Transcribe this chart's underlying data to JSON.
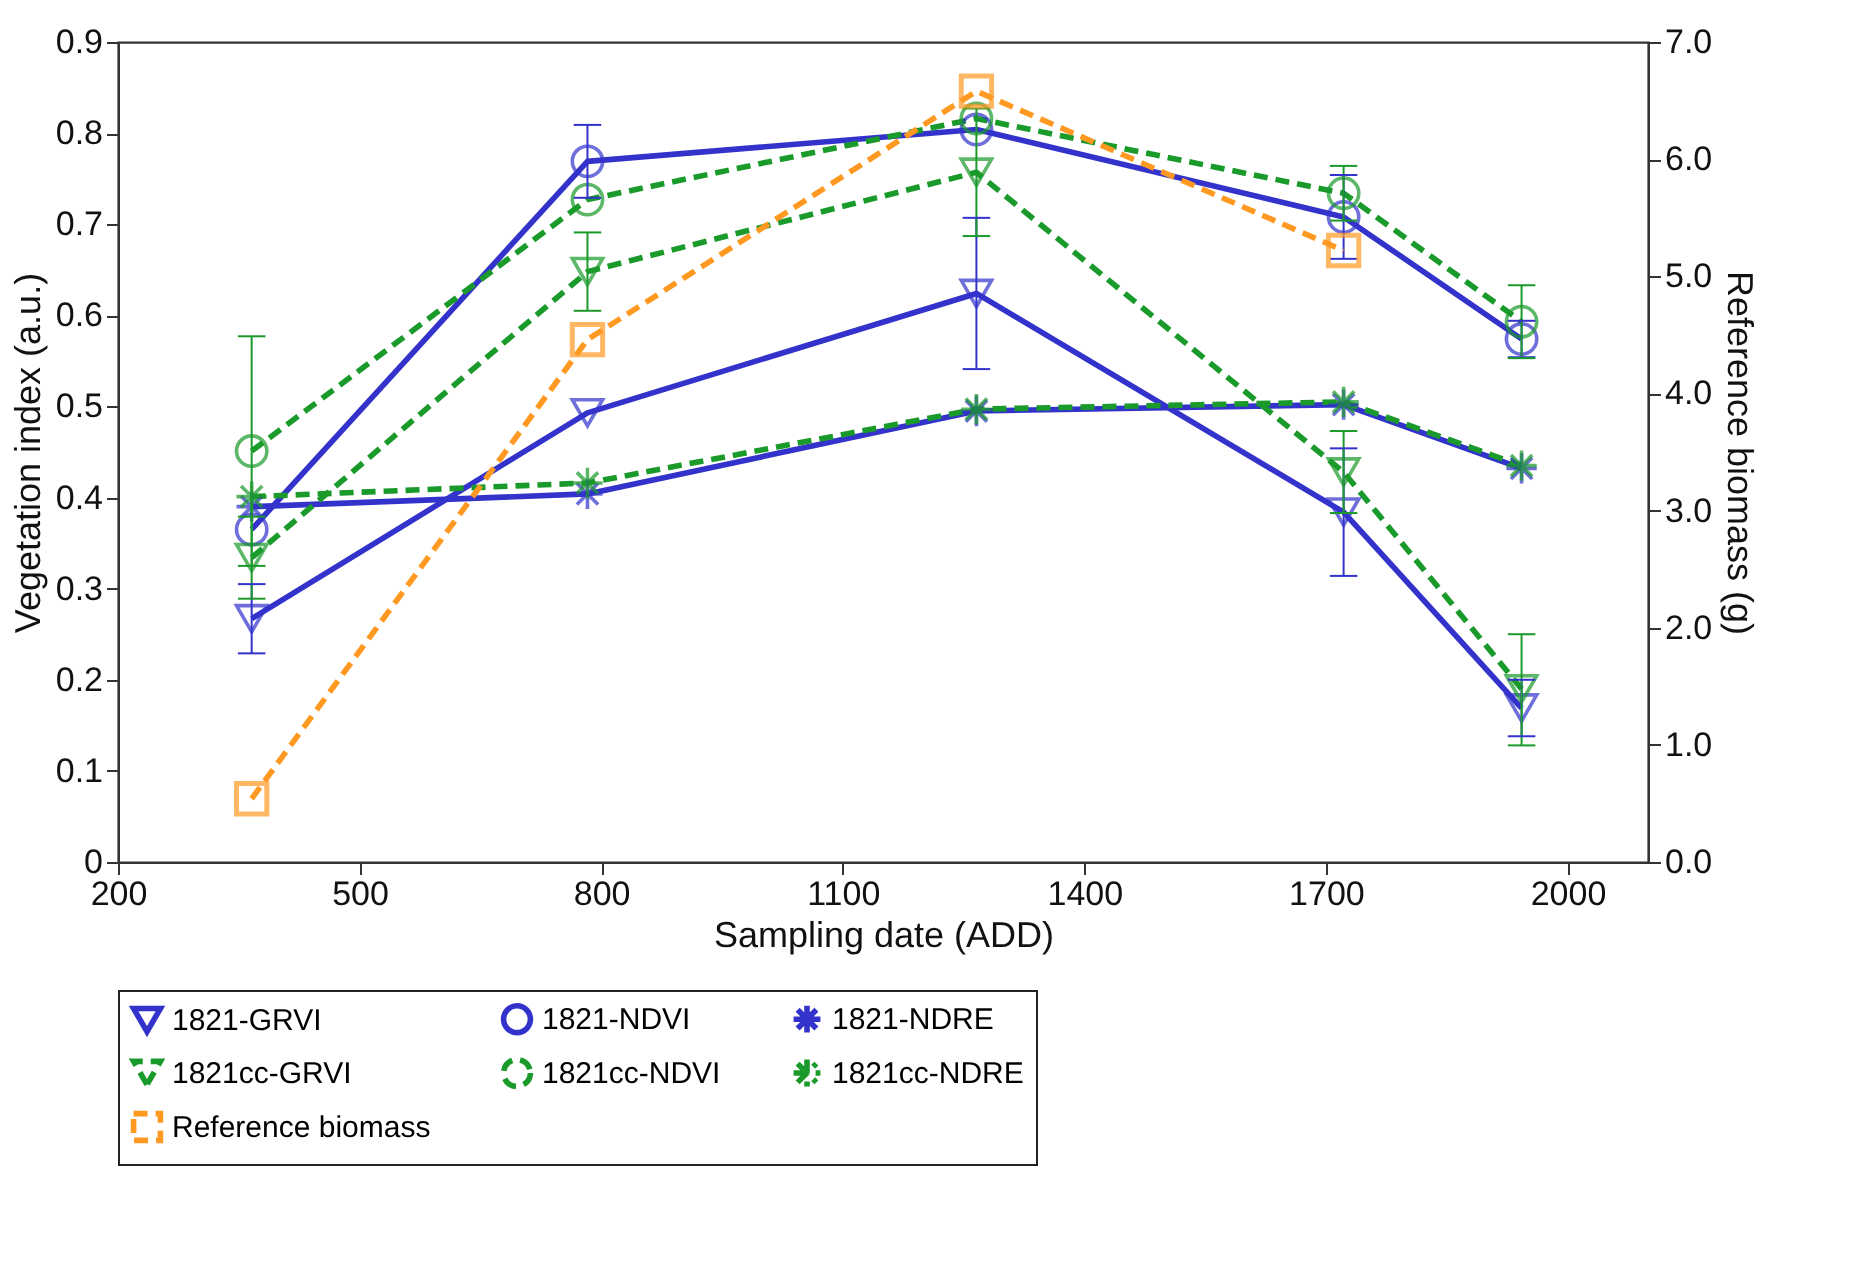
{
  "chart_data": {
    "type": "line",
    "xlabel": "Sampling date (ADD)",
    "ylabel": "Vegetation index (a.u.)",
    "y2label": "Reference biomass (g)",
    "x": [
      366,
      783,
      1266,
      1722,
      1943
    ],
    "xlim": [
      200,
      2100
    ],
    "xticks": [
      200,
      500,
      800,
      {
        "value": 1100,
        "label": "1100"
      },
      {
        "value": 1400,
        "label": "1400"
      },
      {
        "value": 1700,
        "label": "1700"
      },
      {
        "value": 2000,
        "label": "2000"
      }
    ],
    "ylim": [
      0,
      0.9
    ],
    "yticks": [
      0,
      0.1,
      0.2,
      0.3,
      0.4,
      0.5,
      0.6,
      0.7,
      0.8,
      0.9
    ],
    "y2lim": [
      0,
      7
    ],
    "y2ticks": [
      {
        "value": 0,
        "label": "0.0"
      },
      {
        "value": 1,
        "label": "1.0"
      },
      {
        "value": 2,
        "label": "2.0"
      },
      {
        "value": 3,
        "label": "3.0"
      },
      {
        "value": 4,
        "label": "4.0"
      },
      {
        "value": 5,
        "label": "5.0"
      },
      {
        "value": 6,
        "label": "6.0"
      },
      {
        "value": 7,
        "label": "7.0"
      }
    ],
    "grid": false,
    "legend": "bottom",
    "series": [
      {
        "name": "1821-GRVI",
        "color": "#3333cc",
        "marker": "triangle",
        "line_style": "solid",
        "values": [
          0.267,
          0.493,
          0.624,
          0.384,
          0.169
        ],
        "errors": [
          0.038,
          null,
          0.083,
          0.07,
          [
            0.138,
            0.2
          ]
        ]
      },
      {
        "name": "1821-NDVI",
        "color": "#3333cc",
        "marker": "circle",
        "line_style": "solid",
        "values": [
          0.365,
          0.769,
          0.804,
          0.708,
          0.574
        ],
        "errors": [
          null,
          0.04,
          null,
          0.046,
          0.02
        ]
      },
      {
        "name": "1821-NDRE",
        "color": "#3333cc",
        "marker": "cross",
        "line_style": "solid",
        "values": [
          0.39,
          0.404,
          0.495,
          0.502,
          0.432
        ]
      },
      {
        "name": "1821cc-GRVI",
        "color": "#1a9a2a",
        "marker": "triangle",
        "line_style": "dashed",
        "values": [
          0.334,
          0.648,
          0.757,
          0.428,
          0.19
        ],
        "errors": [
          0.045,
          0.043,
          0.07,
          0.045,
          [
            0.128,
            0.25
          ]
        ]
      },
      {
        "name": "1821cc-NDVI",
        "color": "#1a9a2a",
        "marker": "circle",
        "line_style": "dashed",
        "values": [
          0.451,
          0.727,
          0.816,
          0.734,
          0.593
        ],
        "errors": [
          0.126,
          null,
          null,
          0.03,
          0.04
        ]
      },
      {
        "name": "1821cc-NDRE",
        "color": "#1a9a2a",
        "marker": "cross",
        "line_style": "dashed",
        "values": [
          0.401,
          0.416,
          0.497,
          0.505,
          0.435
        ]
      },
      {
        "name": "Reference biomass",
        "color": "#ff9922",
        "marker": "square",
        "line_style": "dashed",
        "axis": "y2",
        "x": [
          366,
          783,
          1266,
          1722
        ],
        "values": [
          0.54,
          4.46,
          6.58,
          5.22
        ]
      }
    ]
  }
}
